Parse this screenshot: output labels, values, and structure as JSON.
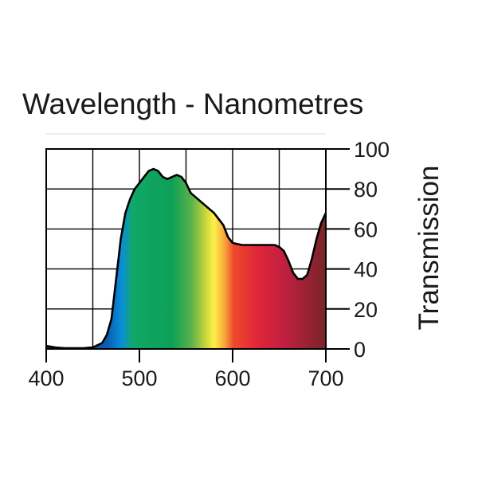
{
  "chart_data": {
    "type": "area",
    "title": "Wavelength - Nanometres",
    "xlabel": "",
    "ylabel": "Transmission",
    "xlim": [
      400,
      700
    ],
    "ylim": [
      0,
      100
    ],
    "grid": true,
    "x_ticks": [
      400,
      500,
      600,
      700
    ],
    "x_tick_labels": [
      "400",
      "500",
      "600",
      "700"
    ],
    "y_ticks": [
      0,
      20,
      40,
      60,
      80,
      100
    ],
    "y_tick_labels": [
      "0",
      "20",
      "40",
      "60",
      "80",
      "100"
    ],
    "series": [
      {
        "name": "Transmission",
        "x": [
          400,
          410,
          420,
          440,
          450,
          460,
          465,
          470,
          475,
          480,
          485,
          490,
          495,
          500,
          505,
          510,
          515,
          520,
          525,
          530,
          535,
          540,
          545,
          550,
          555,
          560,
          570,
          580,
          590,
          595,
          600,
          610,
          620,
          630,
          640,
          645,
          650,
          655,
          660,
          665,
          670,
          675,
          680,
          685,
          690,
          695,
          700
        ],
        "values": [
          1.5,
          0.7,
          0.4,
          0.4,
          0.8,
          3,
          7,
          15,
          35,
          55,
          68,
          75,
          80,
          83,
          86,
          89,
          90,
          89,
          86,
          85,
          86,
          87,
          86,
          83,
          78,
          76,
          72,
          68,
          62,
          56,
          53,
          52,
          52,
          52,
          52,
          52,
          51,
          49,
          44,
          38,
          35,
          35,
          37,
          45,
          55,
          63,
          68
        ]
      }
    ]
  }
}
